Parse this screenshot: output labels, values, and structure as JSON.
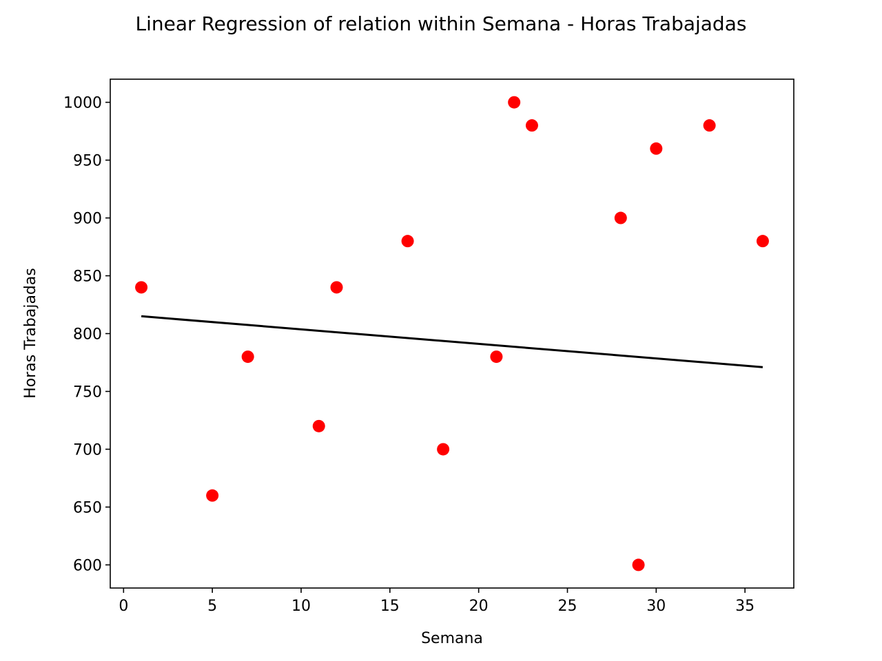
{
  "chart_data": {
    "type": "scatter",
    "title": "Linear Regression of relation within Semana - Horas Trabajadas",
    "xlabel": "Semana",
    "ylabel": "Horas Trabajadas",
    "xlim": [
      -0.75,
      37.75
    ],
    "ylim": [
      580,
      1020
    ],
    "xticks": [
      0,
      5,
      10,
      15,
      20,
      25,
      30,
      35
    ],
    "yticks": [
      600,
      650,
      700,
      750,
      800,
      850,
      900,
      950,
      1000
    ],
    "grid": false,
    "legend": "none",
    "points": {
      "x": [
        1,
        5,
        7,
        11,
        12,
        16,
        18,
        21,
        22,
        23,
        28,
        29,
        30,
        33,
        36
      ],
      "y": [
        840,
        660,
        780,
        720,
        840,
        880,
        700,
        780,
        1000,
        980,
        900,
        600,
        960,
        980,
        880
      ],
      "color": "#ff0000"
    },
    "regression_line": {
      "x": [
        1,
        36
      ],
      "y": [
        815,
        771
      ],
      "color": "#000000"
    }
  }
}
